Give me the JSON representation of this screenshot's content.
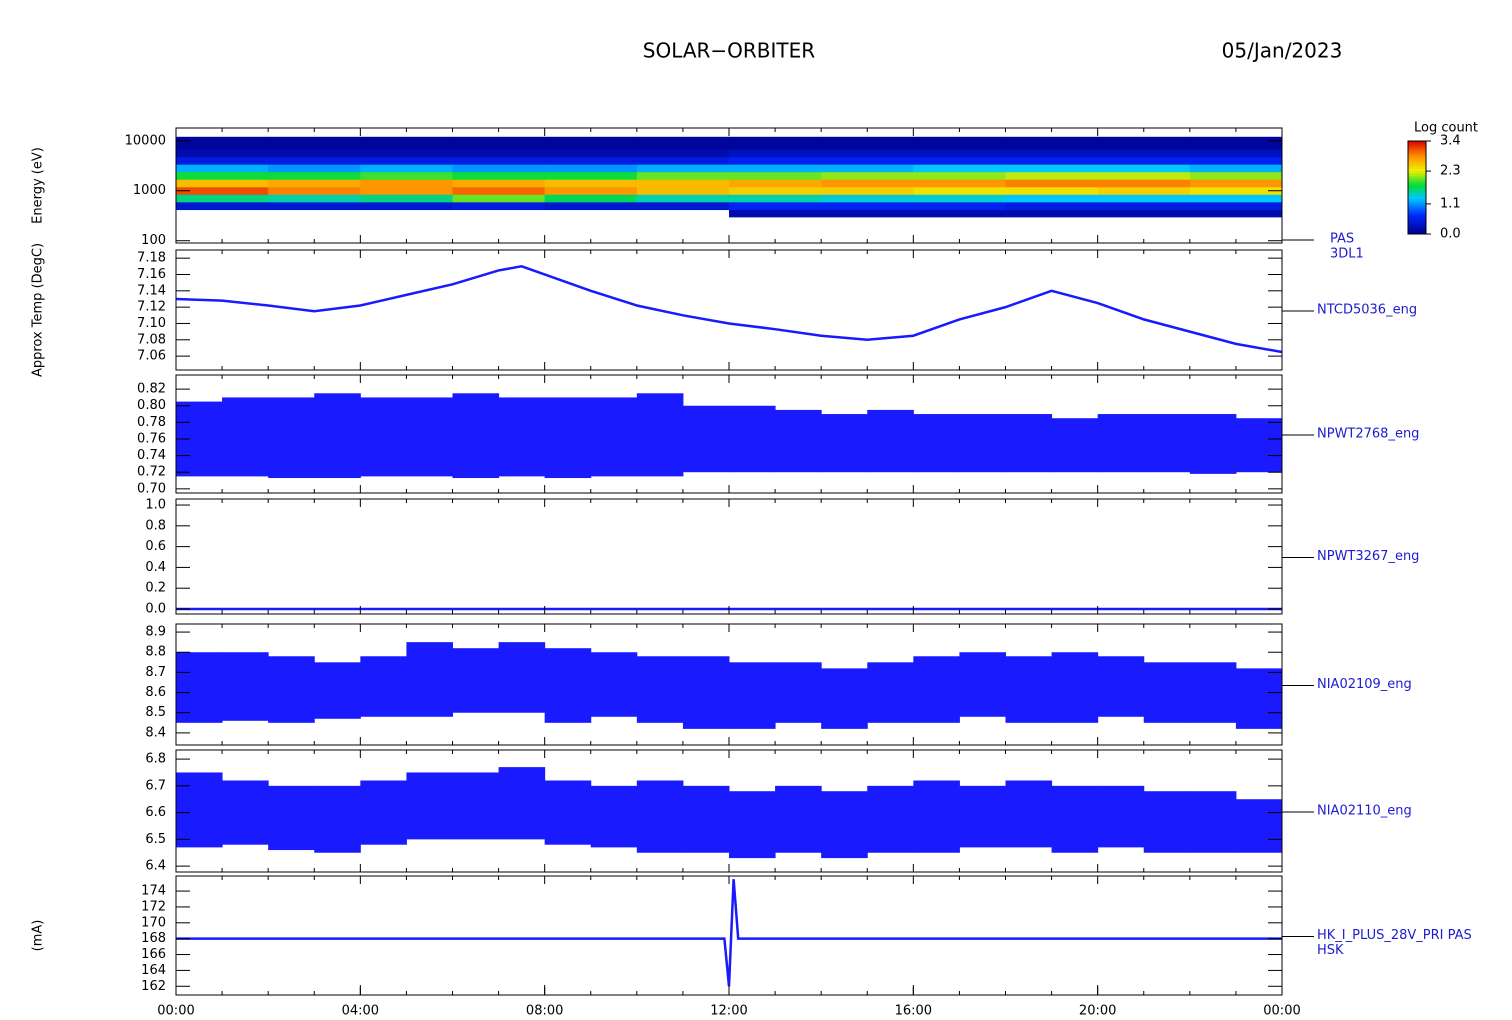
{
  "header": {
    "title": "SOLAR−ORBITER",
    "date": "05/Jan/2023"
  },
  "chart_data": [
    {
      "type": "heatmap",
      "y_label": "Energy (eV)",
      "log": true,
      "ylim": [
        90,
        18000
      ],
      "yticks": [
        100,
        1000,
        10000
      ],
      "labels": [
        "PAS",
        "3DL1"
      ],
      "x": [
        0,
        2,
        4,
        6,
        8,
        10,
        12,
        14,
        16,
        18,
        20,
        22,
        24
      ],
      "y": [
        300,
        420,
        600,
        850,
        1200,
        1700,
        2400,
        3400,
        4800,
        6800,
        12000
      ],
      "z": [
        [
          null,
          0.4,
          1.6,
          3.1,
          2.6,
          1.8,
          1.2,
          0.5,
          0.2,
          0.1
        ],
        [
          null,
          0.4,
          1.5,
          2.9,
          2.7,
          1.8,
          1.1,
          0.5,
          0.2,
          0.1
        ],
        [
          null,
          0.4,
          1.6,
          2.8,
          2.8,
          1.9,
          1.2,
          0.5,
          0.2,
          0.1
        ],
        [
          null,
          0.5,
          2.0,
          3.0,
          2.7,
          1.8,
          1.1,
          0.5,
          0.2,
          0.1
        ],
        [
          null,
          0.4,
          1.7,
          2.8,
          2.6,
          1.8,
          1.1,
          0.5,
          0.2,
          0.1
        ],
        [
          null,
          0.4,
          1.5,
          2.6,
          2.6,
          2.0,
          1.2,
          0.5,
          0.2,
          0.1
        ],
        [
          0.2,
          0.6,
          1.5,
          2.5,
          2.7,
          2.0,
          1.2,
          0.6,
          0.3,
          0.1
        ],
        [
          0.2,
          0.6,
          1.4,
          2.5,
          2.8,
          2.1,
          1.2,
          0.6,
          0.3,
          0.1
        ],
        [
          0.2,
          0.6,
          1.4,
          2.4,
          2.8,
          2.1,
          1.3,
          0.6,
          0.3,
          0.1
        ],
        [
          0.2,
          0.5,
          1.3,
          2.4,
          2.9,
          2.2,
          1.3,
          0.6,
          0.3,
          0.1
        ],
        [
          0.2,
          0.5,
          1.3,
          2.5,
          2.9,
          2.2,
          1.3,
          0.6,
          0.3,
          0.1
        ],
        [
          0.2,
          0.5,
          1.3,
          2.4,
          2.8,
          2.1,
          1.2,
          0.6,
          0.3,
          0.1
        ]
      ],
      "colorbar": {
        "label": "Log count",
        "zlim": [
          0,
          3.4
        ],
        "zticks": [
          {
            "value": 0,
            "label": "0.0"
          },
          1.1,
          2.3,
          3.4
        ]
      }
    },
    {
      "type": "line",
      "y_label": "Approx Temp (DegC)",
      "ylim": [
        7.043,
        7.19
      ],
      "color": "#1a1aff",
      "yticks": [
        7.06,
        7.08,
        {
          "value": 7.1,
          "label": "7.10"
        },
        7.12,
        7.14,
        7.16,
        7.18
      ],
      "labels": [
        "NTCD5036_eng"
      ],
      "x": [
        0,
        1,
        2,
        3,
        4,
        5,
        6,
        7,
        7.5,
        8,
        9,
        10,
        11,
        12,
        13,
        14,
        15,
        16,
        17,
        18,
        19,
        20,
        21,
        22,
        23,
        24
      ],
      "values": [
        7.13,
        7.128,
        7.122,
        7.115,
        7.122,
        7.135,
        7.148,
        7.165,
        7.17,
        7.16,
        7.14,
        7.122,
        7.11,
        7.1,
        7.093,
        7.085,
        7.08,
        7.085,
        7.105,
        7.12,
        7.14,
        7.125,
        7.105,
        7.09,
        7.075,
        7.065
      ]
    },
    {
      "type": "band",
      "ylim": [
        0.695,
        0.837
      ],
      "color": "#1a1aff",
      "yticks": [
        {
          "value": 0.7,
          "label": "0.70"
        },
        0.72,
        0.74,
        0.76,
        0.78,
        {
          "value": 0.8,
          "label": "0.80"
        },
        0.82
      ],
      "labels": [
        "NPWT2768_eng"
      ],
      "bins": [
        0,
        1,
        2,
        3,
        4,
        5,
        6,
        7,
        8,
        9,
        10,
        11,
        12,
        13,
        14,
        15,
        16,
        17,
        18,
        19,
        20,
        21,
        22,
        23,
        24
      ],
      "max": [
        0.805,
        0.81,
        0.81,
        0.815,
        0.81,
        0.81,
        0.815,
        0.81,
        0.81,
        0.81,
        0.815,
        0.8,
        0.8,
        0.795,
        0.79,
        0.795,
        0.79,
        0.79,
        0.79,
        0.785,
        0.79,
        0.79,
        0.79,
        0.785
      ],
      "min": [
        0.715,
        0.715,
        0.713,
        0.713,
        0.715,
        0.715,
        0.713,
        0.715,
        0.713,
        0.715,
        0.715,
        0.72,
        0.72,
        0.72,
        0.72,
        0.72,
        0.72,
        0.72,
        0.72,
        0.72,
        0.72,
        0.72,
        0.718,
        0.72
      ]
    },
    {
      "type": "line",
      "ylim": [
        -0.048,
        1.058
      ],
      "color": "#1a1aff",
      "yticks": [
        {
          "value": 0,
          "label": "0.0"
        },
        0.2,
        0.4,
        0.6,
        0.8,
        {
          "value": 1,
          "label": "1.0"
        }
      ],
      "labels": [
        "NPWT3267_eng"
      ],
      "x": [
        0,
        24
      ],
      "values": [
        0,
        0
      ]
    },
    {
      "type": "band",
      "ylim": [
        8.34,
        8.94
      ],
      "color": "#1a1aff",
      "yticks": [
        8.4,
        8.5,
        8.6,
        8.7,
        8.8,
        8.9
      ],
      "labels": [
        "NIA02109_eng"
      ],
      "bins": [
        0,
        1,
        2,
        3,
        4,
        5,
        6,
        7,
        8,
        9,
        10,
        11,
        12,
        13,
        14,
        15,
        16,
        17,
        18,
        19,
        20,
        21,
        22,
        23,
        24
      ],
      "max": [
        8.8,
        8.8,
        8.78,
        8.75,
        8.78,
        8.85,
        8.82,
        8.85,
        8.82,
        8.8,
        8.78,
        8.78,
        8.75,
        8.75,
        8.72,
        8.75,
        8.78,
        8.8,
        8.78,
        8.8,
        8.78,
        8.75,
        8.75,
        8.72
      ],
      "min": [
        8.45,
        8.46,
        8.45,
        8.47,
        8.48,
        8.48,
        8.5,
        8.5,
        8.45,
        8.48,
        8.45,
        8.42,
        8.42,
        8.45,
        8.42,
        8.45,
        8.45,
        8.48,
        8.45,
        8.45,
        8.48,
        8.45,
        8.45,
        8.42
      ]
    },
    {
      "type": "band",
      "ylim": [
        6.378,
        6.834
      ],
      "color": "#1a1aff",
      "yticks": [
        6.4,
        6.5,
        6.6,
        6.7,
        6.8
      ],
      "labels": [
        "NIA02110_eng"
      ],
      "bins": [
        0,
        1,
        2,
        3,
        4,
        5,
        6,
        7,
        8,
        9,
        10,
        11,
        12,
        13,
        14,
        15,
        16,
        17,
        18,
        19,
        20,
        21,
        22,
        23,
        24
      ],
      "max": [
        6.75,
        6.72,
        6.7,
        6.7,
        6.72,
        6.75,
        6.75,
        6.77,
        6.72,
        6.7,
        6.72,
        6.7,
        6.68,
        6.7,
        6.68,
        6.7,
        6.72,
        6.7,
        6.72,
        6.7,
        6.7,
        6.68,
        6.68,
        6.65
      ],
      "min": [
        6.47,
        6.48,
        6.46,
        6.45,
        6.48,
        6.5,
        6.5,
        6.5,
        6.48,
        6.47,
        6.45,
        6.45,
        6.43,
        6.45,
        6.43,
        6.45,
        6.45,
        6.47,
        6.47,
        6.45,
        6.47,
        6.45,
        6.45,
        6.45
      ]
    },
    {
      "type": "line",
      "y_label": "(mA)",
      "ylim": [
        160.9,
        175.9
      ],
      "color": "#1a1aff",
      "yticks": [
        162,
        164,
        166,
        168,
        170,
        172,
        174
      ],
      "labels": [
        "HK_I_PLUS_28V_PRI PAS",
        "HSK"
      ],
      "x": [
        0,
        2,
        4,
        6,
        8,
        10,
        11.9,
        12,
        12.1,
        12.2,
        14,
        16,
        18,
        20,
        22,
        24
      ],
      "values": [
        168,
        168,
        168,
        168,
        168,
        168,
        168,
        162,
        175.5,
        168,
        168,
        168,
        168,
        168,
        168,
        168
      ],
      "xlim": [
        0,
        24
      ],
      "xticks": [
        {
          "value": 0,
          "label": "00:00"
        },
        {
          "value": 4,
          "label": "04:00"
        },
        {
          "value": 8,
          "label": "08:00"
        },
        {
          "value": 12,
          "label": "12:00"
        },
        {
          "value": 16,
          "label": "16:00"
        },
        {
          "value": 20,
          "label": "20:00"
        },
        {
          "value": 24,
          "label": "00:00"
        }
      ]
    }
  ]
}
